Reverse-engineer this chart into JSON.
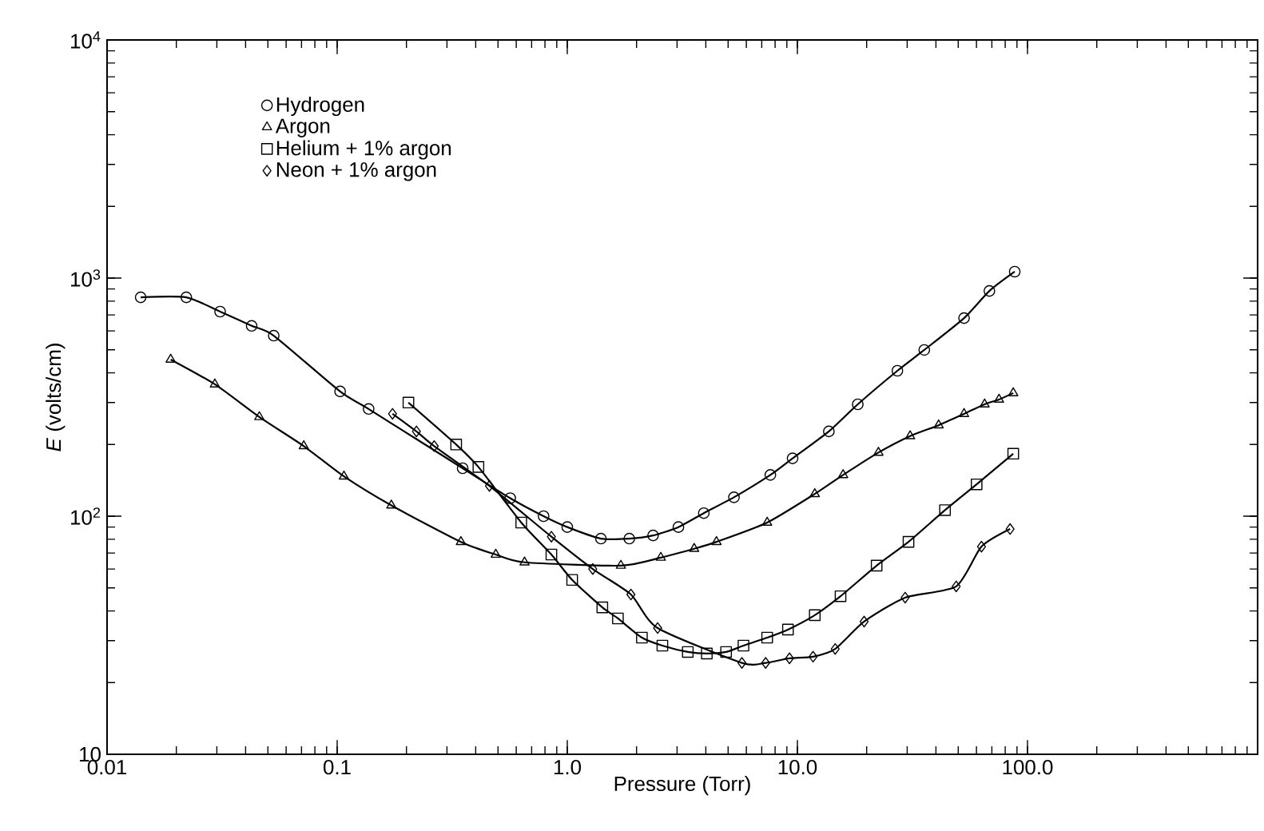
{
  "chart_data": {
    "type": "line",
    "xlabel": "Pressure (Torr)",
    "ylabel": "*E* (volts/cm)",
    "log": "xy",
    "xlim": [
      0.01,
      1000
    ],
    "ylim": [
      10,
      10000
    ],
    "xticks": [
      {
        "value": 0.01,
        "label": "0.01"
      },
      {
        "value": 0.1,
        "label": "0.1"
      },
      {
        "value": 1,
        "label": "1.0"
      },
      {
        "value": 10,
        "label": "10.0"
      },
      {
        "value": 100,
        "label": "100.0"
      },
      {
        "value": 1000,
        "label": null
      }
    ],
    "yticks": [
      {
        "value": 10,
        "label": "10"
      },
      {
        "value": 100,
        "label": "10$^{2}$"
      },
      {
        "value": 1000,
        "label": "10$^{3}$"
      },
      {
        "value": 10000,
        "label": "10$^{4}$"
      }
    ],
    "legend": "top left",
    "grid": false,
    "series": [
      {
        "name": "Hydrogen",
        "color": "#000000",
        "marker": "circle",
        "x": [
          0.014,
          0.0221,
          0.031,
          0.0425,
          0.053,
          0.103,
          0.137,
          0.351,
          0.565,
          0.789,
          1.0,
          1.4,
          1.86,
          2.36,
          3.04,
          3.92,
          5.3,
          7.63,
          9.53,
          13.7,
          18.3,
          27.2,
          35.6,
          53.0,
          68.3,
          88.0
        ],
        "values": [
          830,
          830,
          723,
          630,
          573,
          334,
          282,
          159,
          119,
          100,
          90,
          80.5,
          80.5,
          83,
          90,
          103,
          120,
          149,
          175,
          227,
          295,
          408,
          499,
          679,
          883,
          1064
        ]
      },
      {
        "name": "Argon",
        "color": "#000000",
        "marker": "triangle",
        "x": [
          0.0189,
          0.0294,
          0.0459,
          0.0716,
          0.107,
          0.172,
          0.345,
          0.489,
          0.652,
          1.71,
          2.55,
          3.56,
          4.45,
          7.39,
          11.9,
          15.8,
          22.5,
          30.9,
          41.1,
          53.0,
          65.1,
          75.2,
          86.7
        ],
        "values": [
          455,
          358,
          261,
          197,
          147,
          111,
          78,
          69,
          64,
          62,
          67,
          73,
          78,
          94,
          124,
          149,
          185,
          217,
          241,
          269,
          295,
          309,
          329
        ]
      },
      {
        "name": "Helium + 1% argon",
        "color": "#000000",
        "marker": "square",
        "x": [
          0.204,
          0.329,
          0.411,
          0.631,
          0.853,
          1.05,
          1.42,
          1.66,
          2.11,
          2.59,
          3.34,
          4.04,
          4.9,
          5.83,
          7.39,
          9.1,
          11.9,
          15.4,
          22.1,
          30.4,
          43.8,
          60.1,
          86.7
        ],
        "values": [
          300,
          200,
          161,
          94,
          69,
          54,
          41.4,
          37.2,
          30.9,
          28.6,
          26.9,
          26.5,
          26.9,
          28.6,
          30.9,
          33.4,
          38.4,
          46.1,
          62,
          78,
          106,
          136,
          183
        ]
      },
      {
        "name": "Neon + 1% argon",
        "color": "#000000",
        "marker": "diamond",
        "x": [
          0.174,
          0.221,
          0.264,
          0.459,
          0.853,
          1.29,
          1.89,
          2.47,
          5.74,
          7.28,
          9.24,
          11.7,
          14.6,
          19.5,
          29.4,
          49.0,
          63.1,
          84.0
        ],
        "values": [
          269,
          227,
          197,
          134,
          82,
          60,
          46.9,
          33.9,
          24.2,
          24.2,
          25.3,
          25.7,
          27.7,
          36.1,
          45.5,
          50.7,
          74.5,
          88.3
        ]
      }
    ]
  }
}
